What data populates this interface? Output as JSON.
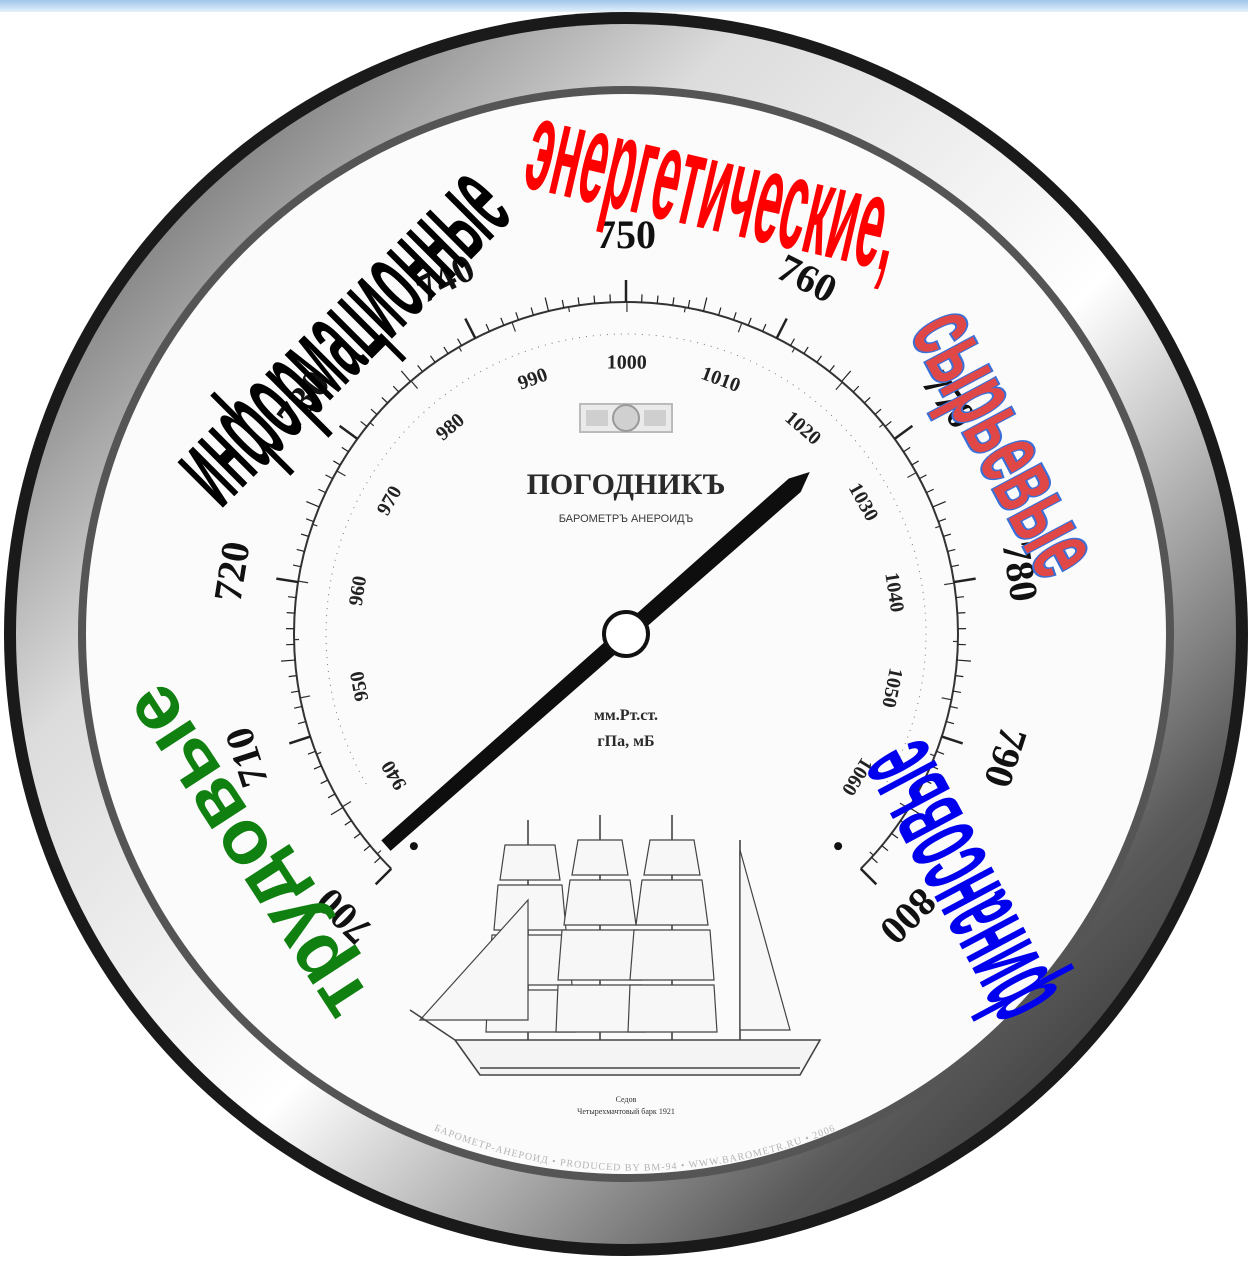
{
  "barometer": {
    "mm_labels": [
      "700",
      "710",
      "720",
      "730",
      "740",
      "750",
      "760",
      "770",
      "780",
      "790",
      "800"
    ],
    "hpa_labels": [
      "940",
      "950",
      "960",
      "970",
      "980",
      "990",
      "1000",
      "1010",
      "1020",
      "1030",
      "1040",
      "1050",
      "1060"
    ],
    "brand": "ПОГОДНИКЪ",
    "subtitle": "БАРОМЕТРЪ АНЕРОИДЪ",
    "unit_mm": "мм.Рт.ст.",
    "unit_hpa": "гПа, мБ",
    "ship_caption_1": "Седов",
    "ship_caption_2": "Четырехмачтовый барк 1921",
    "rim_text": "БАРОМЕТР-АНЕРОИД • PRODUCED BY BM-94 • WWW.BAROMETR.RU • 2006",
    "needle_value_mm": 768
  },
  "overlay_words": {
    "informational": "информационные",
    "energy": "энергетические,",
    "raw": "сырьевые",
    "labor": "трудовые",
    "financial": "финансовые"
  },
  "colors": {
    "informational": "#000000",
    "energy": "#ff0000",
    "raw": "#e04848",
    "raw_outline": "#3a6fd8",
    "labor": "#108010",
    "financial": "#0000ee",
    "rim_dark": "#1c1c1c",
    "rim_light": "#e8e8e8"
  }
}
